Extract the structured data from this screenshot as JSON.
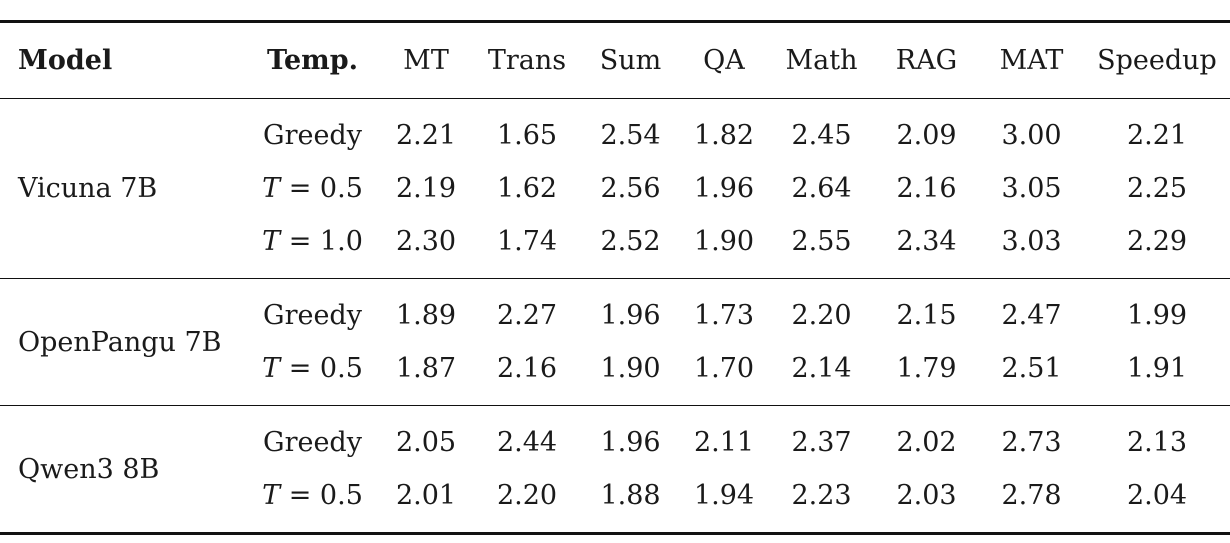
{
  "table": {
    "headers": [
      "Model",
      "Temp.",
      "MT",
      "Trans",
      "Sum",
      "QA",
      "Math",
      "RAG",
      "MAT",
      "Speedup"
    ],
    "groups": [
      {
        "model": "Vicuna 7B",
        "rows": [
          {
            "temp": "Greedy",
            "values": [
              "2.21",
              "1.65",
              "2.54",
              "1.82",
              "2.45",
              "2.09",
              "3.00",
              "2.21"
            ]
          },
          {
            "temp": "T = 0.5",
            "values": [
              "2.19",
              "1.62",
              "2.56",
              "1.96",
              "2.64",
              "2.16",
              "3.05",
              "2.25"
            ]
          },
          {
            "temp": "T = 1.0",
            "values": [
              "2.30",
              "1.74",
              "2.52",
              "1.90",
              "2.55",
              "2.34",
              "3.03",
              "2.29"
            ]
          }
        ]
      },
      {
        "model": "OpenPangu 7B",
        "rows": [
          {
            "temp": "Greedy",
            "values": [
              "1.89",
              "2.27",
              "1.96",
              "1.73",
              "2.20",
              "2.15",
              "2.47",
              "1.99"
            ]
          },
          {
            "temp": "T = 0.5",
            "values": [
              "1.87",
              "2.16",
              "1.90",
              "1.70",
              "2.14",
              "1.79",
              "2.51",
              "1.91"
            ]
          }
        ]
      },
      {
        "model": "Qwen3 8B",
        "rows": [
          {
            "temp": "Greedy",
            "values": [
              "2.05",
              "2.44",
              "1.96",
              "2.11",
              "2.37",
              "2.02",
              "2.73",
              "2.13"
            ]
          },
          {
            "temp": "T = 0.5",
            "values": [
              "2.01",
              "2.20",
              "1.88",
              "1.94",
              "2.23",
              "2.03",
              "2.78",
              "2.04"
            ]
          }
        ]
      }
    ]
  }
}
